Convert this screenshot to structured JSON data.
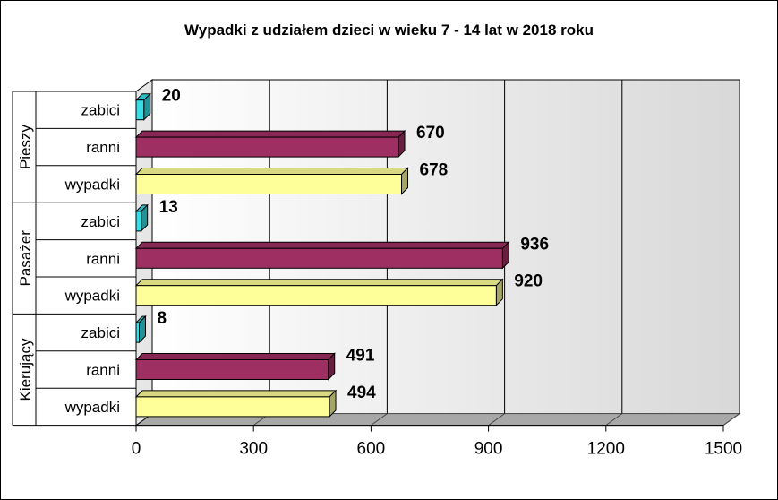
{
  "chart_data": {
    "type": "bar",
    "orientation": "horizontal",
    "title": "Wypadki z udziałem dzieci w wieku 7 - 14 lat w 2018 roku",
    "xlim": [
      0,
      1500
    ],
    "xticks": [
      "0",
      "300",
      "600",
      "900",
      "1200",
      "1500"
    ],
    "grid": true,
    "groups": [
      {
        "name": "Pieszy",
        "rows": [
          {
            "label": "zabici",
            "value": 20,
            "value_label": "20"
          },
          {
            "label": "ranni",
            "value": 670,
            "value_label": "670"
          },
          {
            "label": "wypadki",
            "value": 678,
            "value_label": "678"
          }
        ]
      },
      {
        "name": "Pasażer",
        "rows": [
          {
            "label": "zabici",
            "value": 13,
            "value_label": "13"
          },
          {
            "label": "ranni",
            "value": 936,
            "value_label": "936"
          },
          {
            "label": "wypadki",
            "value": 920,
            "value_label": "920"
          }
        ]
      },
      {
        "name": "Kierujący",
        "rows": [
          {
            "label": "zabici",
            "value": 8,
            "value_label": "8"
          },
          {
            "label": "ranni",
            "value": 491,
            "value_label": "491"
          },
          {
            "label": "wypadki",
            "value": 494,
            "value_label": "494"
          }
        ]
      }
    ],
    "colors": {
      "zabici": "#33e0e8",
      "ranni": "#9e2f62",
      "wypadki": "#ffff99"
    }
  }
}
